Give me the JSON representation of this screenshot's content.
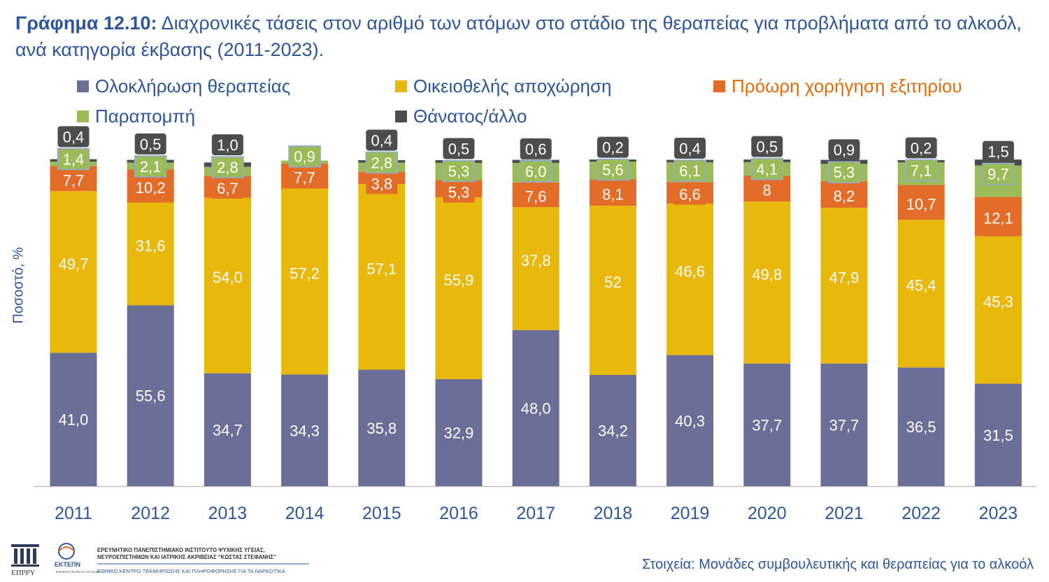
{
  "header": {
    "title_bold": "Γράφημα 12.10:",
    "title_rest": " Διαχρονικές τάσεις στον αριθμό των ατόμων στο στάδιο της θεραπείας για προβλήματα από το αλκοόλ, ανά κατηγορία έκβασης (2011-2023)."
  },
  "colors": {
    "completion": "#6b6f98",
    "voluntary": "#e8b80c",
    "discharge": "#e36c28",
    "referral": "#9bbb59",
    "death": "#4d4d4d",
    "text": "#2f5597"
  },
  "chart_data": {
    "type": "bar",
    "stacked": true,
    "ylabel": "Ποσοστό, %",
    "ylim": [
      0,
      100
    ],
    "grid": false,
    "legend_position": "top",
    "categories": [
      "2011",
      "2012",
      "2013",
      "2014",
      "2015",
      "2016",
      "2017",
      "2018",
      "2019",
      "2020",
      "2021",
      "2022",
      "2023"
    ],
    "series": [
      {
        "key": "completion",
        "name": "Ολοκλήρωση θεραπείας",
        "values": [
          41.0,
          55.6,
          34.7,
          34.3,
          35.8,
          32.9,
          48.0,
          34.2,
          40.3,
          37.7,
          37.7,
          36.5,
          31.5
        ],
        "labels": [
          "41,0",
          "55,6",
          "34,7",
          "34,3",
          "35,8",
          "32,9",
          "48,0",
          "34,2",
          "40,3",
          "37,7",
          "37,7",
          "36,5",
          "31,5"
        ]
      },
      {
        "key": "voluntary",
        "name": "Οικειοθελής αποχώρηση",
        "values": [
          49.7,
          31.6,
          54.0,
          57.2,
          57.1,
          55.9,
          37.8,
          52,
          46.6,
          49.8,
          47.9,
          45.4,
          45.3
        ],
        "labels": [
          "49,7",
          "31,6",
          "54,0",
          "57,2",
          "57,1",
          "55,9",
          "37,8",
          "52",
          "46,6",
          "49,8",
          "47,9",
          "45,4",
          "45,3"
        ]
      },
      {
        "key": "discharge",
        "name": "Πρόωρη χορήγηση εξιτηρίου",
        "values": [
          7.7,
          10.2,
          6.7,
          7.7,
          3.8,
          5.3,
          7.6,
          8.1,
          6.6,
          8,
          8.2,
          10.7,
          12.1
        ],
        "labels": [
          "7,7",
          "10,2",
          "6,7",
          "7,7",
          "3,8",
          "5,3",
          "7,6",
          "8,1",
          "6,6",
          "8",
          "8,2",
          "10,7",
          "12,1"
        ]
      },
      {
        "key": "referral",
        "name": "Παραπομπή",
        "values": [
          1.4,
          2.1,
          2.8,
          0.9,
          2.8,
          5.3,
          6.0,
          5.6,
          6.1,
          4.1,
          5.3,
          7.1,
          9.7
        ],
        "labels": [
          "1,4",
          "2,1",
          "2,8",
          "0,9",
          "2,8",
          "5,3",
          "6,0",
          "5,6",
          "6,1",
          "4,1",
          "5,3",
          "7,1",
          "9,7"
        ]
      },
      {
        "key": "death",
        "name": "Θάνατος/άλλο",
        "values": [
          0.4,
          0.5,
          1.0,
          0,
          0.4,
          0.5,
          0.6,
          0.2,
          0.4,
          0.5,
          0.9,
          0.2,
          1.5
        ],
        "labels": [
          "0,4",
          "0,5",
          "1,0",
          "",
          "0,4",
          "0,5",
          "0,6",
          "0,2",
          "0,4",
          "0,5",
          "0,9",
          "0,2",
          "1,5"
        ]
      }
    ]
  },
  "footer": {
    "source": "Στοιχεία: Μονάδες συμβουλευτικής και θεραπείας για το αλκοόλ",
    "logo1_text": "ΕΠΙΨΥ",
    "logo2_text": "ΕΚΤΕΠΝ",
    "logo2_sub": "ΕΘΝΙΚΟΣ ΦΟΡΕΑΣ ΤΟΥ EUDA",
    "institute_line1": "ΕΡΕΥΝΗΤΙΚΟ ΠΑΝΕΠΙΣΤΗΜΙΑΚΟ ΙΝΣΤΙΤΟΥΤΟ ΨΥΧΙΚΗΣ ΥΓΕΙΑΣ,",
    "institute_line2": "ΝΕΥΡΟΕΠΙΣΤΗΜΩΝ ΚΑΙ ΙΑΤΡΙΚΗΣ ΑΚΡΙΒΕΙΑΣ “ΚΩΣΤΑΣ ΣΤΕΦΑΝΗΣ”",
    "institute_sub": "ΕΘΝΙΚΟ ΚΕΝΤΡΟ ΤΕΚΜΗΡΙΩΣΗΣ ΚΑΙ ΠΛΗΡΟΦΟΡΗΣΗΣ ΓΙΑ ΤΑ ΝΑΡΚΩΤΙΚΑ"
  }
}
